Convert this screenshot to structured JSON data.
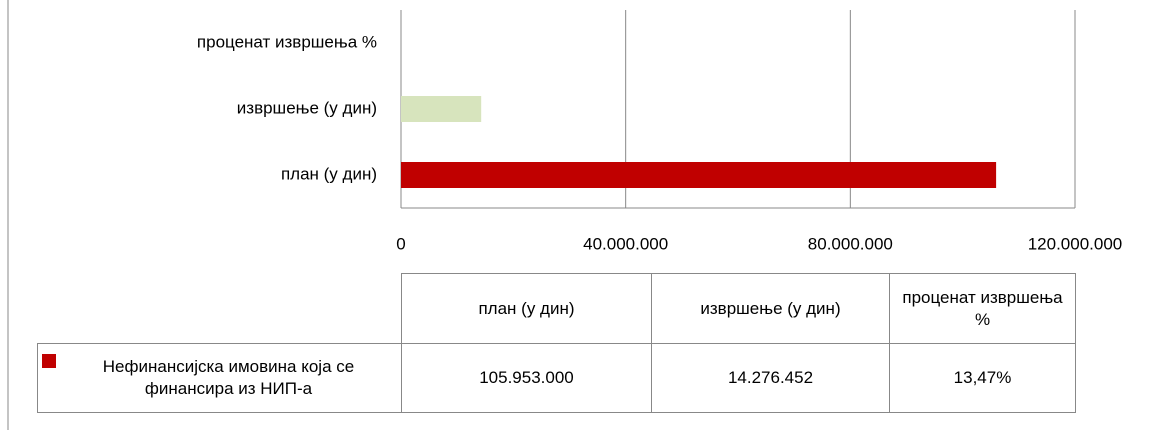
{
  "chart_data": {
    "type": "bar",
    "orientation": "horizontal",
    "categories": [
      "план (у дин)",
      "извршење (у дин)",
      "проценат извршења %"
    ],
    "series": [
      {
        "name": "Нефинансијска имовина која се финансира из НИП-а",
        "color": "#c00000",
        "colors": [
          "#c00000",
          "#d7e4bd",
          "#4f81bd"
        ],
        "values": [
          105953000,
          14276452,
          13.47
        ],
        "value_labels": [
          "105.953.000",
          "14.276.452",
          "13,47%"
        ]
      }
    ],
    "xlim": [
      0,
      120000000
    ],
    "xticks": [
      0,
      {
        "value": 40000000,
        "label": "40.000.000"
      },
      {
        "value": 80000000,
        "label": "80.000.000"
      },
      {
        "value": 120000000,
        "label": "120.000.000"
      }
    ],
    "grid": true,
    "data_table": true
  }
}
